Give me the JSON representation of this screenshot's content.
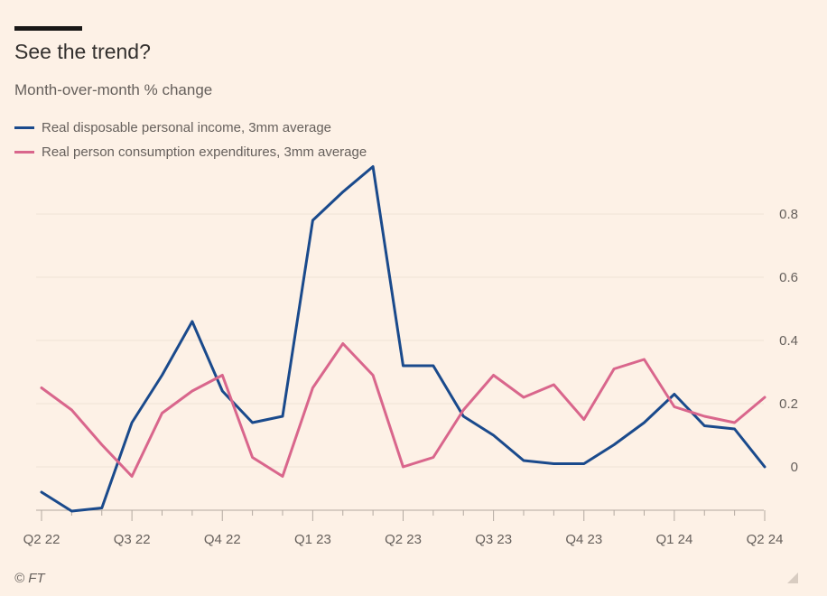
{
  "header": {
    "title": "See the trend?",
    "subtitle": "Month-over-month % change"
  },
  "footer": {
    "source": "© FT"
  },
  "colors": {
    "background": "#fdf1e6",
    "income": "#1a4a8c",
    "consumption": "#d9668c",
    "grid": "#efe2d6",
    "text": "#66605c"
  },
  "chart_data": {
    "type": "line",
    "x": [
      "2022-04",
      "2022-05",
      "2022-06",
      "2022-07",
      "2022-08",
      "2022-09",
      "2022-10",
      "2022-11",
      "2022-12",
      "2023-01",
      "2023-02",
      "2023-03",
      "2023-04",
      "2023-05",
      "2023-06",
      "2023-07",
      "2023-08",
      "2023-09",
      "2023-10",
      "2023-11",
      "2023-12",
      "2024-01",
      "2024-02",
      "2024-03",
      "2024-04"
    ],
    "series": [
      {
        "name": "Real disposable personal income, 3mm average",
        "color": "#1a4a8c",
        "values": [
          -0.08,
          -0.14,
          -0.13,
          0.14,
          0.29,
          0.46,
          0.24,
          0.14,
          0.16,
          0.78,
          0.87,
          0.95,
          0.32,
          0.32,
          0.16,
          0.1,
          0.02,
          0.01,
          0.01,
          0.07,
          0.14,
          0.23,
          0.13,
          0.12,
          0.0
        ]
      },
      {
        "name": "Real person consumption expenditures, 3mm average",
        "color": "#d9668c",
        "values": [
          0.25,
          0.18,
          0.07,
          -0.03,
          0.17,
          0.24,
          0.29,
          0.03,
          -0.03,
          0.25,
          0.39,
          0.29,
          0.0,
          0.03,
          0.18,
          0.29,
          0.22,
          0.26,
          0.15,
          0.31,
          0.34,
          0.19,
          0.16,
          0.14,
          0.22
        ]
      }
    ],
    "x_ticks": [
      {
        "x": "2022-04",
        "label": "Q2 22"
      },
      {
        "x": "2022-07",
        "label": "Q3 22"
      },
      {
        "x": "2022-10",
        "label": "Q4 22"
      },
      {
        "x": "2023-01",
        "label": "Q1 23"
      },
      {
        "x": "2023-04",
        "label": "Q2 23"
      },
      {
        "x": "2023-07",
        "label": "Q3 23"
      },
      {
        "x": "2023-10",
        "label": "Q4 23"
      },
      {
        "x": "2024-01",
        "label": "Q1 24"
      },
      {
        "x": "2024-04",
        "label": "Q2 24"
      }
    ],
    "y_ticks": [
      0,
      0.2,
      0.4,
      0.6,
      0.8
    ],
    "y_tick_labels": [
      "0",
      "0.2",
      "0.4",
      "0.6",
      "0.8"
    ],
    "ylim": [
      -0.14,
      0.95
    ],
    "grid": true,
    "y_axis_position": "right",
    "legend_position": "top-left"
  }
}
